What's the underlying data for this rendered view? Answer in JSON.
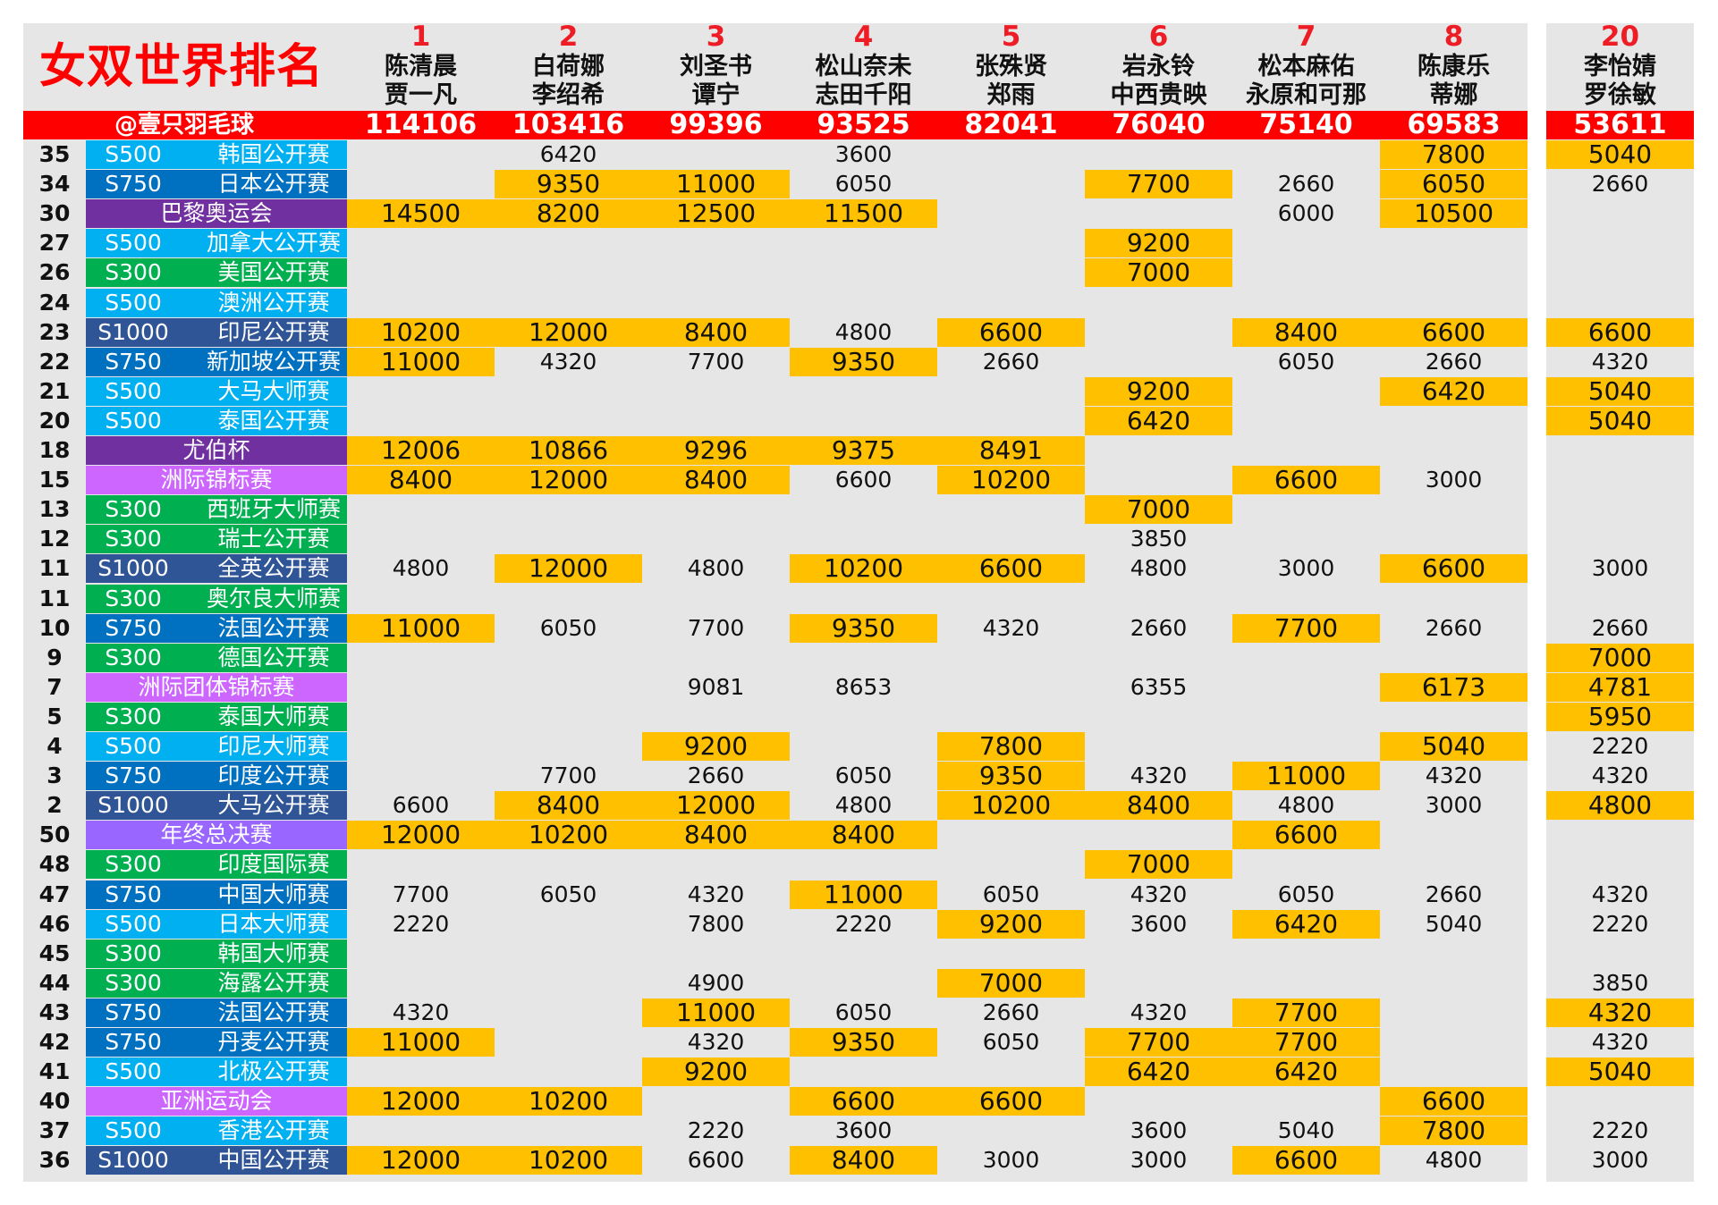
{
  "title": "女双世界排名",
  "credit": "@壹只羽毛球",
  "colors": {
    "red": "#ff0000",
    "highlight": "#ffc000",
    "panel": "#e6e6e6",
    "S1000": "#2f5597",
    "S750": "#0070c0",
    "S500": "#00b0f0",
    "S300": "#00b050",
    "olympics": "#7030a0",
    "uber": "#7030a0",
    "continental": "#cc66ff",
    "finals": "#9966ff"
  },
  "players": [
    {
      "rank": "1",
      "name1": "陈清晨",
      "name2": "贾一凡",
      "total": "114106"
    },
    {
      "rank": "2",
      "name1": "白荷娜",
      "name2": "李绍希",
      "total": "103416"
    },
    {
      "rank": "3",
      "name1": "刘圣书",
      "name2": "谭宁",
      "total": "99396"
    },
    {
      "rank": "4",
      "name1": "松山奈未",
      "name2": "志田千阳",
      "total": "93525"
    },
    {
      "rank": "5",
      "name1": "张殊贤",
      "name2": "郑雨",
      "total": "82041"
    },
    {
      "rank": "6",
      "name1": "岩永铃",
      "name2": "中西贵映",
      "total": "76040"
    },
    {
      "rank": "7",
      "name1": "松本麻佑",
      "name2": "永原和可那",
      "total": "75140"
    },
    {
      "rank": "8",
      "name1": "陈康乐",
      "name2": "蒂娜",
      "total": "69583"
    },
    {
      "rank": "20",
      "name1": "李怡婧",
      "name2": "罗徐敏",
      "total": "53611"
    }
  ],
  "rows": [
    {
      "week": "35",
      "tier": "S500",
      "name": "韩国公开赛",
      "cat": "S500",
      "cells": [
        "",
        "6420",
        "",
        "3600",
        "",
        "",
        "",
        "*7800",
        "*5040"
      ]
    },
    {
      "week": "34",
      "tier": "S750",
      "name": "日本公开赛",
      "cat": "S750",
      "cells": [
        "",
        "*9350",
        "*11000",
        "6050",
        "",
        "*7700",
        "2660",
        "*6050",
        "2660"
      ]
    },
    {
      "week": "30",
      "tier": "",
      "name": "巴黎奥运会",
      "cat": "olympics",
      "cells": [
        "*14500",
        "*8200",
        "*12500",
        "*11500",
        "",
        "",
        "6000",
        "*10500",
        ""
      ]
    },
    {
      "week": "27",
      "tier": "S500",
      "name": "加拿大公开赛",
      "cat": "S500",
      "cells": [
        "",
        "",
        "",
        "",
        "",
        "*9200",
        "",
        "",
        ""
      ]
    },
    {
      "week": "26",
      "tier": "S300",
      "name": "美国公开赛",
      "cat": "S300",
      "cells": [
        "",
        "",
        "",
        "",
        "",
        "*7000",
        "",
        "",
        ""
      ]
    },
    {
      "week": "24",
      "tier": "S500",
      "name": "澳洲公开赛",
      "cat": "S500",
      "cells": [
        "",
        "",
        "",
        "",
        "",
        "",
        "",
        "",
        ""
      ]
    },
    {
      "week": "23",
      "tier": "S1000",
      "name": "印尼公开赛",
      "cat": "S1000",
      "cells": [
        "*10200",
        "*12000",
        "*8400",
        "4800",
        "*6600",
        "",
        "*8400",
        "*6600",
        "*6600"
      ]
    },
    {
      "week": "22",
      "tier": "S750",
      "name": "新加坡公开赛",
      "cat": "S750",
      "cells": [
        "*11000",
        "4320",
        "7700",
        "*9350",
        "2660",
        "",
        "6050",
        "2660",
        "4320"
      ]
    },
    {
      "week": "21",
      "tier": "S500",
      "name": "大马大师赛",
      "cat": "S500",
      "cells": [
        "",
        "",
        "",
        "",
        "",
        "*9200",
        "",
        "*6420",
        "*5040"
      ]
    },
    {
      "week": "20",
      "tier": "S500",
      "name": "泰国公开赛",
      "cat": "S500",
      "cells": [
        "",
        "",
        "",
        "",
        "",
        "*6420",
        "",
        "",
        "*5040"
      ]
    },
    {
      "week": "18",
      "tier": "",
      "name": "尤伯杯",
      "cat": "uber",
      "cells": [
        "*12006",
        "*10866",
        "*9296",
        "*9375",
        "*8491",
        "",
        "",
        "",
        ""
      ]
    },
    {
      "week": "15",
      "tier": "",
      "name": "洲际锦标赛",
      "cat": "continental",
      "cells": [
        "*8400",
        "*12000",
        "*8400",
        "6600",
        "*10200",
        "",
        "*6600",
        "3000",
        ""
      ]
    },
    {
      "week": "13",
      "tier": "S300",
      "name": "西班牙大师赛",
      "cat": "S300",
      "cells": [
        "",
        "",
        "",
        "",
        "",
        "*7000",
        "",
        "",
        ""
      ]
    },
    {
      "week": "12",
      "tier": "S300",
      "name": "瑞士公开赛",
      "cat": "S300",
      "cells": [
        "",
        "",
        "",
        "",
        "",
        "3850",
        "",
        "",
        ""
      ]
    },
    {
      "week": "11",
      "tier": "S1000",
      "name": "全英公开赛",
      "cat": "S1000",
      "cells": [
        "4800",
        "*12000",
        "4800",
        "*10200",
        "*6600",
        "4800",
        "3000",
        "*6600",
        "3000"
      ]
    },
    {
      "week": "11",
      "tier": "S300",
      "name": "奥尔良大师赛",
      "cat": "S300",
      "cells": [
        "",
        "",
        "",
        "",
        "",
        "",
        "",
        "",
        ""
      ]
    },
    {
      "week": "10",
      "tier": "S750",
      "name": "法国公开赛",
      "cat": "S750",
      "cells": [
        "*11000",
        "6050",
        "7700",
        "*9350",
        "4320",
        "2660",
        "*7700",
        "2660",
        "2660"
      ]
    },
    {
      "week": "9",
      "tier": "S300",
      "name": "德国公开赛",
      "cat": "S300",
      "cells": [
        "",
        "",
        "",
        "",
        "",
        "",
        "",
        "",
        "*7000"
      ]
    },
    {
      "week": "7",
      "tier": "",
      "name": "洲际团体锦标赛",
      "cat": "continental",
      "cells": [
        "",
        "",
        "9081",
        "8653",
        "",
        "6355",
        "",
        "*6173",
        "*4781"
      ]
    },
    {
      "week": "5",
      "tier": "S300",
      "name": "泰国大师赛",
      "cat": "S300",
      "cells": [
        "",
        "",
        "",
        "",
        "",
        "",
        "",
        "",
        "*5950"
      ]
    },
    {
      "week": "4",
      "tier": "S500",
      "name": "印尼大师赛",
      "cat": "S500",
      "cells": [
        "",
        "",
        "*9200",
        "",
        "*7800",
        "",
        "",
        "*5040",
        "2220"
      ]
    },
    {
      "week": "3",
      "tier": "S750",
      "name": "印度公开赛",
      "cat": "S750",
      "cells": [
        "",
        "7700",
        "2660",
        "6050",
        "*9350",
        "4320",
        "*11000",
        "4320",
        "4320"
      ]
    },
    {
      "week": "2",
      "tier": "S1000",
      "name": "大马公开赛",
      "cat": "S1000",
      "cells": [
        "6600",
        "*8400",
        "*12000",
        "4800",
        "*10200",
        "*8400",
        "4800",
        "3000",
        "*4800"
      ]
    },
    {
      "week": "50",
      "tier": "",
      "name": "年终总决赛",
      "cat": "finals",
      "cells": [
        "*12000",
        "*10200",
        "*8400",
        "*8400",
        "",
        "",
        "*6600",
        "",
        ""
      ]
    },
    {
      "week": "48",
      "tier": "S300",
      "name": "印度国际赛",
      "cat": "S300",
      "cells": [
        "",
        "",
        "",
        "",
        "",
        "*7000",
        "",
        "",
        ""
      ]
    },
    {
      "week": "47",
      "tier": "S750",
      "name": "中国大师赛",
      "cat": "S750",
      "cells": [
        "7700",
        "6050",
        "4320",
        "*11000",
        "6050",
        "4320",
        "6050",
        "2660",
        "4320"
      ]
    },
    {
      "week": "46",
      "tier": "S500",
      "name": "日本大师赛",
      "cat": "S500",
      "cells": [
        "2220",
        "",
        "7800",
        "2220",
        "*9200",
        "3600",
        "*6420",
        "5040",
        "2220"
      ]
    },
    {
      "week": "45",
      "tier": "S300",
      "name": "韩国大师赛",
      "cat": "S300",
      "cells": [
        "",
        "",
        "",
        "",
        "",
        "",
        "",
        "",
        ""
      ]
    },
    {
      "week": "44",
      "tier": "S300",
      "name": "海露公开赛",
      "cat": "S300",
      "cells": [
        "",
        "",
        "4900",
        "",
        "*7000",
        "",
        "",
        "",
        "3850"
      ]
    },
    {
      "week": "43",
      "tier": "S750",
      "name": "法国公开赛",
      "cat": "S750",
      "cells": [
        "4320",
        "",
        "*11000",
        "6050",
        "2660",
        "4320",
        "*7700",
        "",
        "*4320"
      ]
    },
    {
      "week": "42",
      "tier": "S750",
      "name": "丹麦公开赛",
      "cat": "S750",
      "cells": [
        "*11000",
        "",
        "4320",
        "*9350",
        "6050",
        "*7700",
        "*7700",
        "",
        "4320"
      ]
    },
    {
      "week": "41",
      "tier": "S500",
      "name": "北极公开赛",
      "cat": "S500",
      "cells": [
        "",
        "",
        "*9200",
        "",
        "",
        "*6420",
        "*6420",
        "",
        "*5040"
      ]
    },
    {
      "week": "40",
      "tier": "",
      "name": "亚洲运动会",
      "cat": "continental",
      "cells": [
        "*12000",
        "*10200",
        "",
        "*6600",
        "*6600",
        "",
        "",
        "*6600",
        ""
      ]
    },
    {
      "week": "37",
      "tier": "S500",
      "name": "香港公开赛",
      "cat": "S500",
      "cells": [
        "",
        "",
        "2220",
        "3600",
        "",
        "3600",
        "5040",
        "*7800",
        "2220"
      ]
    },
    {
      "week": "36",
      "tier": "S1000",
      "name": "中国公开赛",
      "cat": "S1000",
      "cells": [
        "*12000",
        "*10200",
        "6600",
        "*8400",
        "3000",
        "3000",
        "*6600",
        "4800",
        "3000"
      ]
    }
  ]
}
